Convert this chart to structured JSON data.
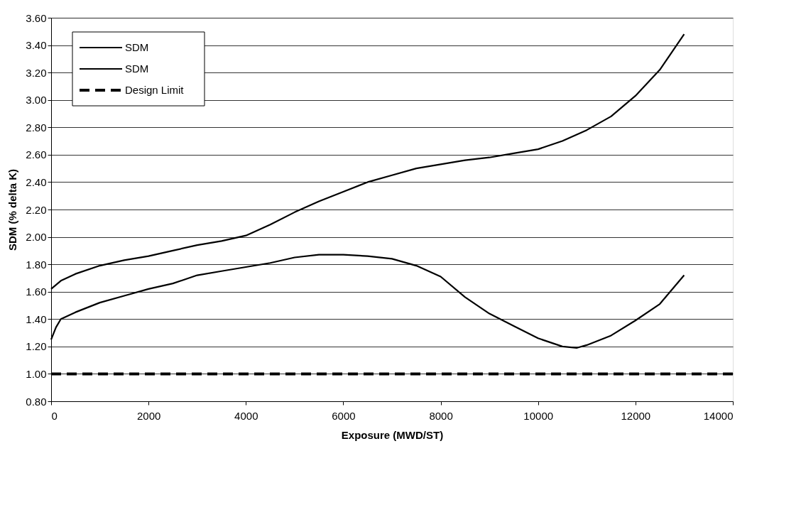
{
  "chart_data": {
    "type": "line",
    "xlabel": "Exposure (MWD/ST)",
    "ylabel": "SDM (% delta K)",
    "xlim": [
      0,
      14000
    ],
    "xticks": [
      0,
      2000,
      4000,
      6000,
      8000,
      10000,
      12000,
      14000
    ],
    "ylim": [
      0.8,
      3.6
    ],
    "yticks": [
      {
        "value": 0.8,
        "label": "0.80"
      },
      {
        "value": 1.0,
        "label": "1.00"
      },
      {
        "value": 1.2,
        "label": "1.20"
      },
      {
        "value": 1.4,
        "label": "1.40"
      },
      {
        "value": 1.6,
        "label": "1.60"
      },
      {
        "value": 1.8,
        "label": "1.80"
      },
      {
        "value": 2.0,
        "label": "2.00"
      },
      {
        "value": 2.2,
        "label": "2.20"
      },
      {
        "value": 2.4,
        "label": "2.40"
      },
      {
        "value": 2.6,
        "label": "2.60"
      },
      {
        "value": 2.8,
        "label": "2.80"
      },
      {
        "value": 3.0,
        "label": "3.00"
      },
      {
        "value": 3.2,
        "label": "3.20"
      },
      {
        "value": 3.4,
        "label": "3.40"
      },
      {
        "value": 3.6,
        "label": "3.60"
      }
    ],
    "grid": "y",
    "legend": "top left",
    "marker": "none",
    "line_style": "solid",
    "x": [
      0,
      200,
      500,
      1000,
      1500,
      2000,
      2500,
      3000,
      3500,
      4000,
      4500,
      5000,
      5500,
      6000,
      6500,
      7000,
      7500,
      8000,
      8500,
      9000,
      9500,
      10000,
      10500,
      11000,
      11500,
      12000,
      12500,
      13000
    ],
    "series": [
      {
        "name": "SDM",
        "color": "#000000",
        "values": [
          1.62,
          1.68,
          1.73,
          1.79,
          1.83,
          1.86,
          1.9,
          1.94,
          1.97,
          2.01,
          2.09,
          2.18,
          2.26,
          2.33,
          2.4,
          2.45,
          2.5,
          2.53,
          2.56,
          2.58,
          2.61,
          2.64,
          2.7,
          2.78,
          2.88,
          3.03,
          3.22,
          3.48
        ]
      },
      {
        "name": "SDM",
        "color": "#000000",
        "x": [
          0,
          100,
          200,
          500,
          1000,
          1500,
          2000,
          2500,
          3000,
          3500,
          4000,
          4500,
          5000,
          5500,
          6000,
          6500,
          7000,
          7500,
          8000,
          8500,
          9000,
          9500,
          10000,
          10500,
          10800,
          11000,
          11500,
          12000,
          12500,
          13000
        ],
        "values": [
          1.25,
          1.34,
          1.4,
          1.45,
          1.52,
          1.57,
          1.62,
          1.66,
          1.72,
          1.75,
          1.78,
          1.81,
          1.85,
          1.87,
          1.87,
          1.86,
          1.84,
          1.79,
          1.71,
          1.56,
          1.44,
          1.35,
          1.26,
          1.2,
          1.19,
          1.21,
          1.28,
          1.39,
          1.51,
          1.72
        ]
      }
    ],
    "ref_lines": [
      {
        "axis": "y",
        "value": 1.0,
        "label": "Design Limit",
        "color": "#000000",
        "line_style": "dashed"
      }
    ]
  }
}
